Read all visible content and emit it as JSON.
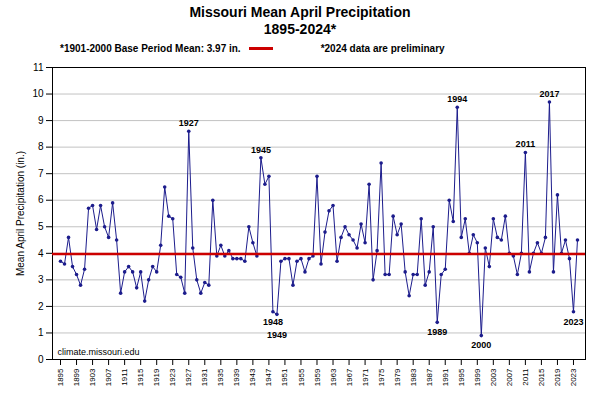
{
  "chart_data": {
    "type": "line",
    "title": "Missouri Mean April Precipitation",
    "subtitle": "1895-2024*",
    "y_label": "Mean April Precipitation (in.)",
    "x": [
      1895,
      1896,
      1897,
      1898,
      1899,
      1900,
      1901,
      1902,
      1903,
      1904,
      1905,
      1906,
      1907,
      1908,
      1909,
      1910,
      1911,
      1912,
      1913,
      1914,
      1915,
      1916,
      1917,
      1918,
      1919,
      1920,
      1921,
      1922,
      1923,
      1924,
      1925,
      1926,
      1927,
      1928,
      1929,
      1930,
      1931,
      1932,
      1933,
      1934,
      1935,
      1936,
      1937,
      1938,
      1939,
      1940,
      1941,
      1942,
      1943,
      1944,
      1945,
      1946,
      1947,
      1948,
      1949,
      1950,
      1951,
      1952,
      1953,
      1954,
      1955,
      1956,
      1957,
      1958,
      1959,
      1960,
      1961,
      1962,
      1963,
      1964,
      1965,
      1966,
      1967,
      1968,
      1969,
      1970,
      1971,
      1972,
      1973,
      1974,
      1975,
      1976,
      1977,
      1978,
      1979,
      1980,
      1981,
      1982,
      1983,
      1984,
      1985,
      1986,
      1987,
      1988,
      1989,
      1990,
      1991,
      1992,
      1993,
      1994,
      1995,
      1996,
      1997,
      1998,
      1999,
      2000,
      2001,
      2002,
      2003,
      2004,
      2005,
      2006,
      2007,
      2008,
      2009,
      2010,
      2011,
      2012,
      2013,
      2014,
      2015,
      2016,
      2017,
      2018,
      2019,
      2020,
      2021,
      2022,
      2023,
      2024
    ],
    "values": [
      3.7,
      3.6,
      4.6,
      3.5,
      3.2,
      2.8,
      3.4,
      5.7,
      5.8,
      4.9,
      5.8,
      5.0,
      4.6,
      5.9,
      4.5,
      2.5,
      3.3,
      3.5,
      3.3,
      2.7,
      3.3,
      2.2,
      3.0,
      3.5,
      3.3,
      4.3,
      6.5,
      5.4,
      5.3,
      3.2,
      3.1,
      2.5,
      8.6,
      4.2,
      3.0,
      2.5,
      2.9,
      2.8,
      6.0,
      3.9,
      4.3,
      3.9,
      4.1,
      3.8,
      3.8,
      3.8,
      3.7,
      5.0,
      4.4,
      3.9,
      7.6,
      6.6,
      6.9,
      1.8,
      1.7,
      3.7,
      3.8,
      3.8,
      2.8,
      3.7,
      3.8,
      3.3,
      3.8,
      3.9,
      6.9,
      3.6,
      4.8,
      5.6,
      5.8,
      3.7,
      4.6,
      5.0,
      4.7,
      4.5,
      4.2,
      5.1,
      4.4,
      6.6,
      3.0,
      4.1,
      7.4,
      3.2,
      3.2,
      5.4,
      4.7,
      5.1,
      3.3,
      2.4,
      3.2,
      3.2,
      5.3,
      2.8,
      3.3,
      5.0,
      1.4,
      3.2,
      3.4,
      6.0,
      5.2,
      9.5,
      4.6,
      5.3,
      4.0,
      4.7,
      4.4,
      0.9,
      4.2,
      3.5,
      5.3,
      4.6,
      4.5,
      5.4,
      4.0,
      3.9,
      3.2,
      4.0,
      7.8,
      3.3,
      4.0,
      4.4,
      4.0,
      4.6,
      9.7,
      3.3,
      6.2,
      4.0,
      4.5,
      3.8,
      1.8,
      4.5
    ],
    "color": "#1C1C8C",
    "marker": "circle",
    "xlim": [
      1893,
      2026
    ],
    "xticks": [
      1895,
      1899,
      1903,
      1907,
      1911,
      1915,
      1919,
      1923,
      1927,
      1931,
      1935,
      1939,
      1943,
      1947,
      1951,
      1955,
      1959,
      1963,
      1967,
      1971,
      1975,
      1979,
      1983,
      1987,
      1991,
      1995,
      1999,
      2003,
      2007,
      2011,
      2015,
      2019,
      2023
    ],
    "ylim": [
      0,
      11
    ],
    "yticks": [
      0,
      1,
      2,
      3,
      4,
      5,
      6,
      7,
      8,
      9,
      10,
      11
    ],
    "grid": true,
    "reference_line": {
      "value": 3.97,
      "label": "*1901-2000 Base Period Mean: 3.97 in.",
      "color": "#CC0000"
    },
    "annotations": [
      {
        "x": 1927,
        "text": "1927"
      },
      {
        "x": 1945,
        "text": "1945"
      },
      {
        "x": 1948,
        "text": "1948"
      },
      {
        "x": 1949,
        "text": "1949"
      },
      {
        "x": 1989,
        "text": "1989"
      },
      {
        "x": 1994,
        "text": "1994"
      },
      {
        "x": 2000,
        "text": "2000"
      },
      {
        "x": 2011,
        "text": "2011"
      },
      {
        "x": 2017,
        "text": "2017"
      },
      {
        "x": 2023,
        "text": "2023"
      }
    ],
    "note": "*2024 data are preliminary",
    "source": "climate.missouri.edu"
  }
}
